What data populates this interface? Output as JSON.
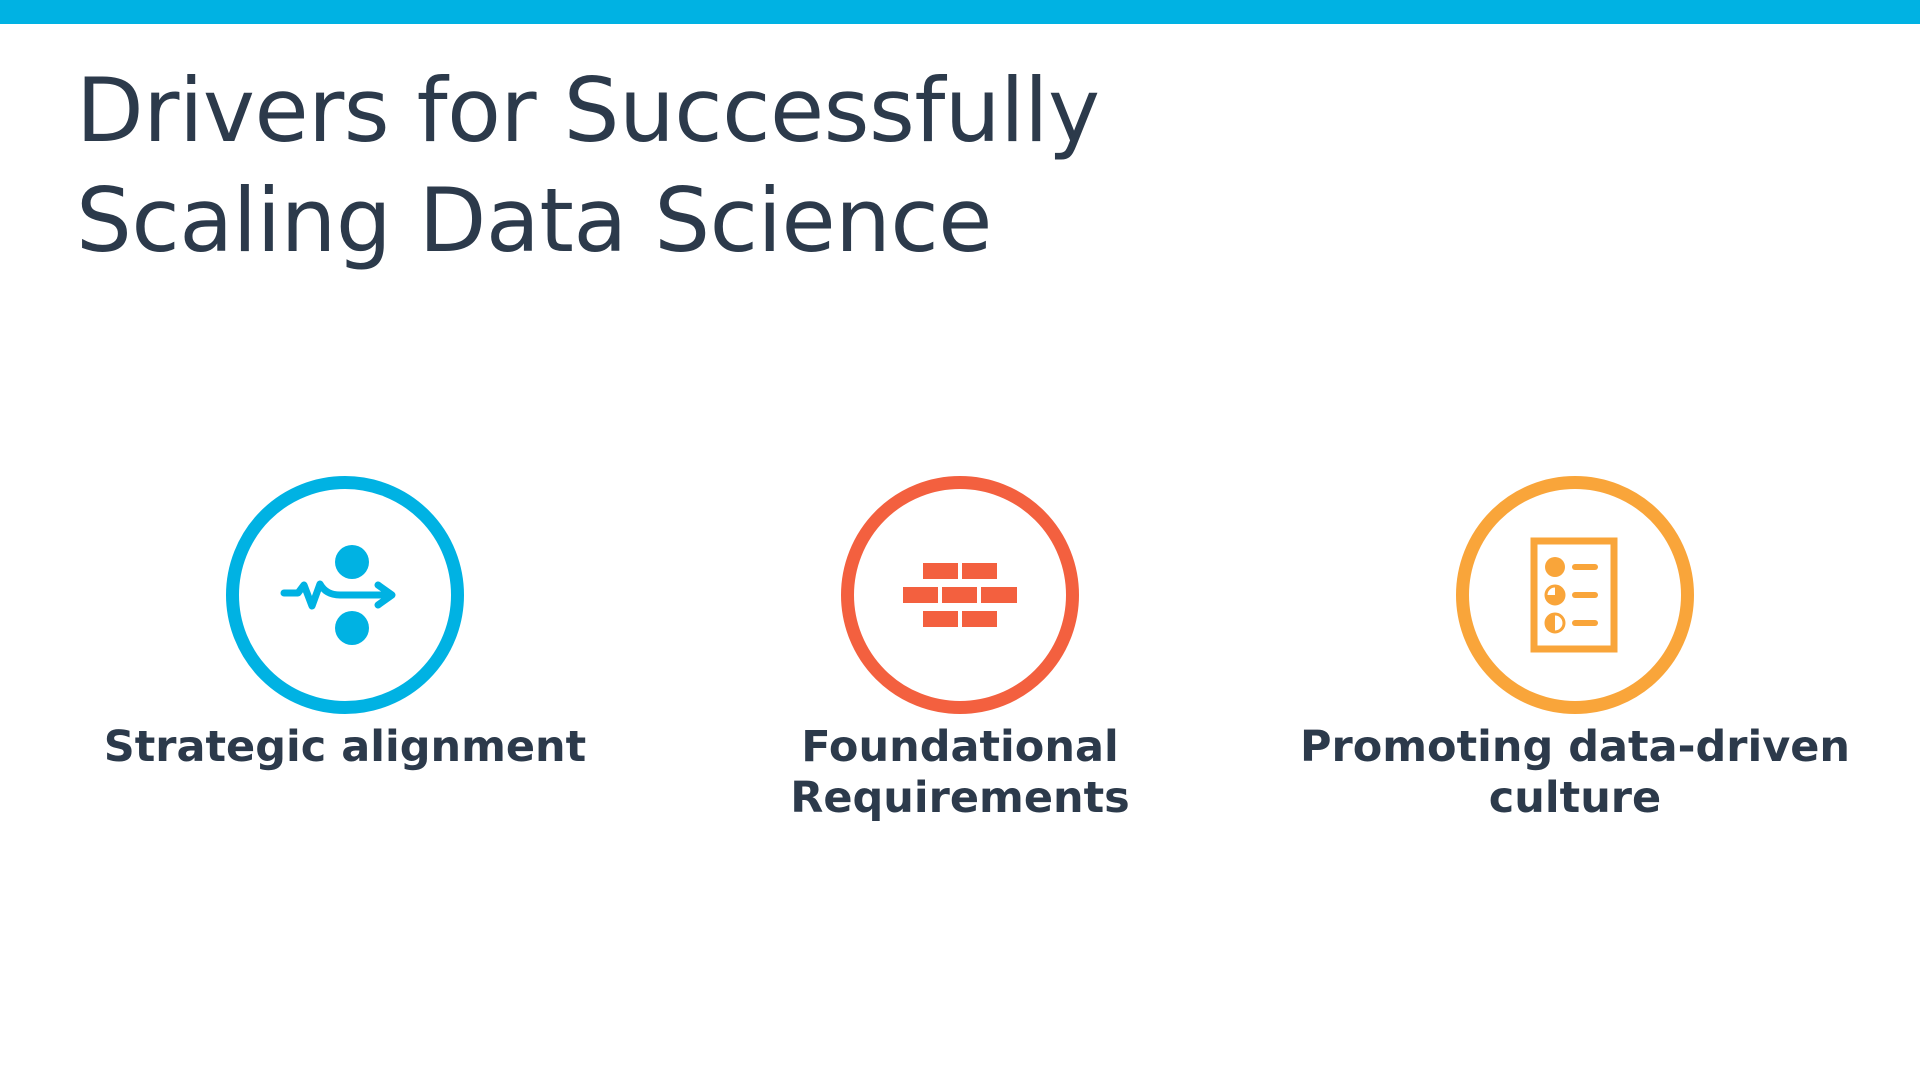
{
  "slide": {
    "title_lines": [
      "Drivers for Successfully",
      "Scaling Data Science"
    ],
    "accent_color": "#00b2e3",
    "text_color": "#2c3a4b"
  },
  "drivers": [
    {
      "icon": "alignment-arrow-icon",
      "color": "#00b2e3",
      "label_lines": [
        "Strategic alignment"
      ]
    },
    {
      "icon": "brick-wall-icon",
      "color": "#f3603f",
      "label_lines": [
        "Foundational",
        "Requirements"
      ]
    },
    {
      "icon": "report-document-icon",
      "color": "#f9a53a",
      "label_lines": [
        "Promoting data-driven",
        "culture"
      ]
    }
  ]
}
